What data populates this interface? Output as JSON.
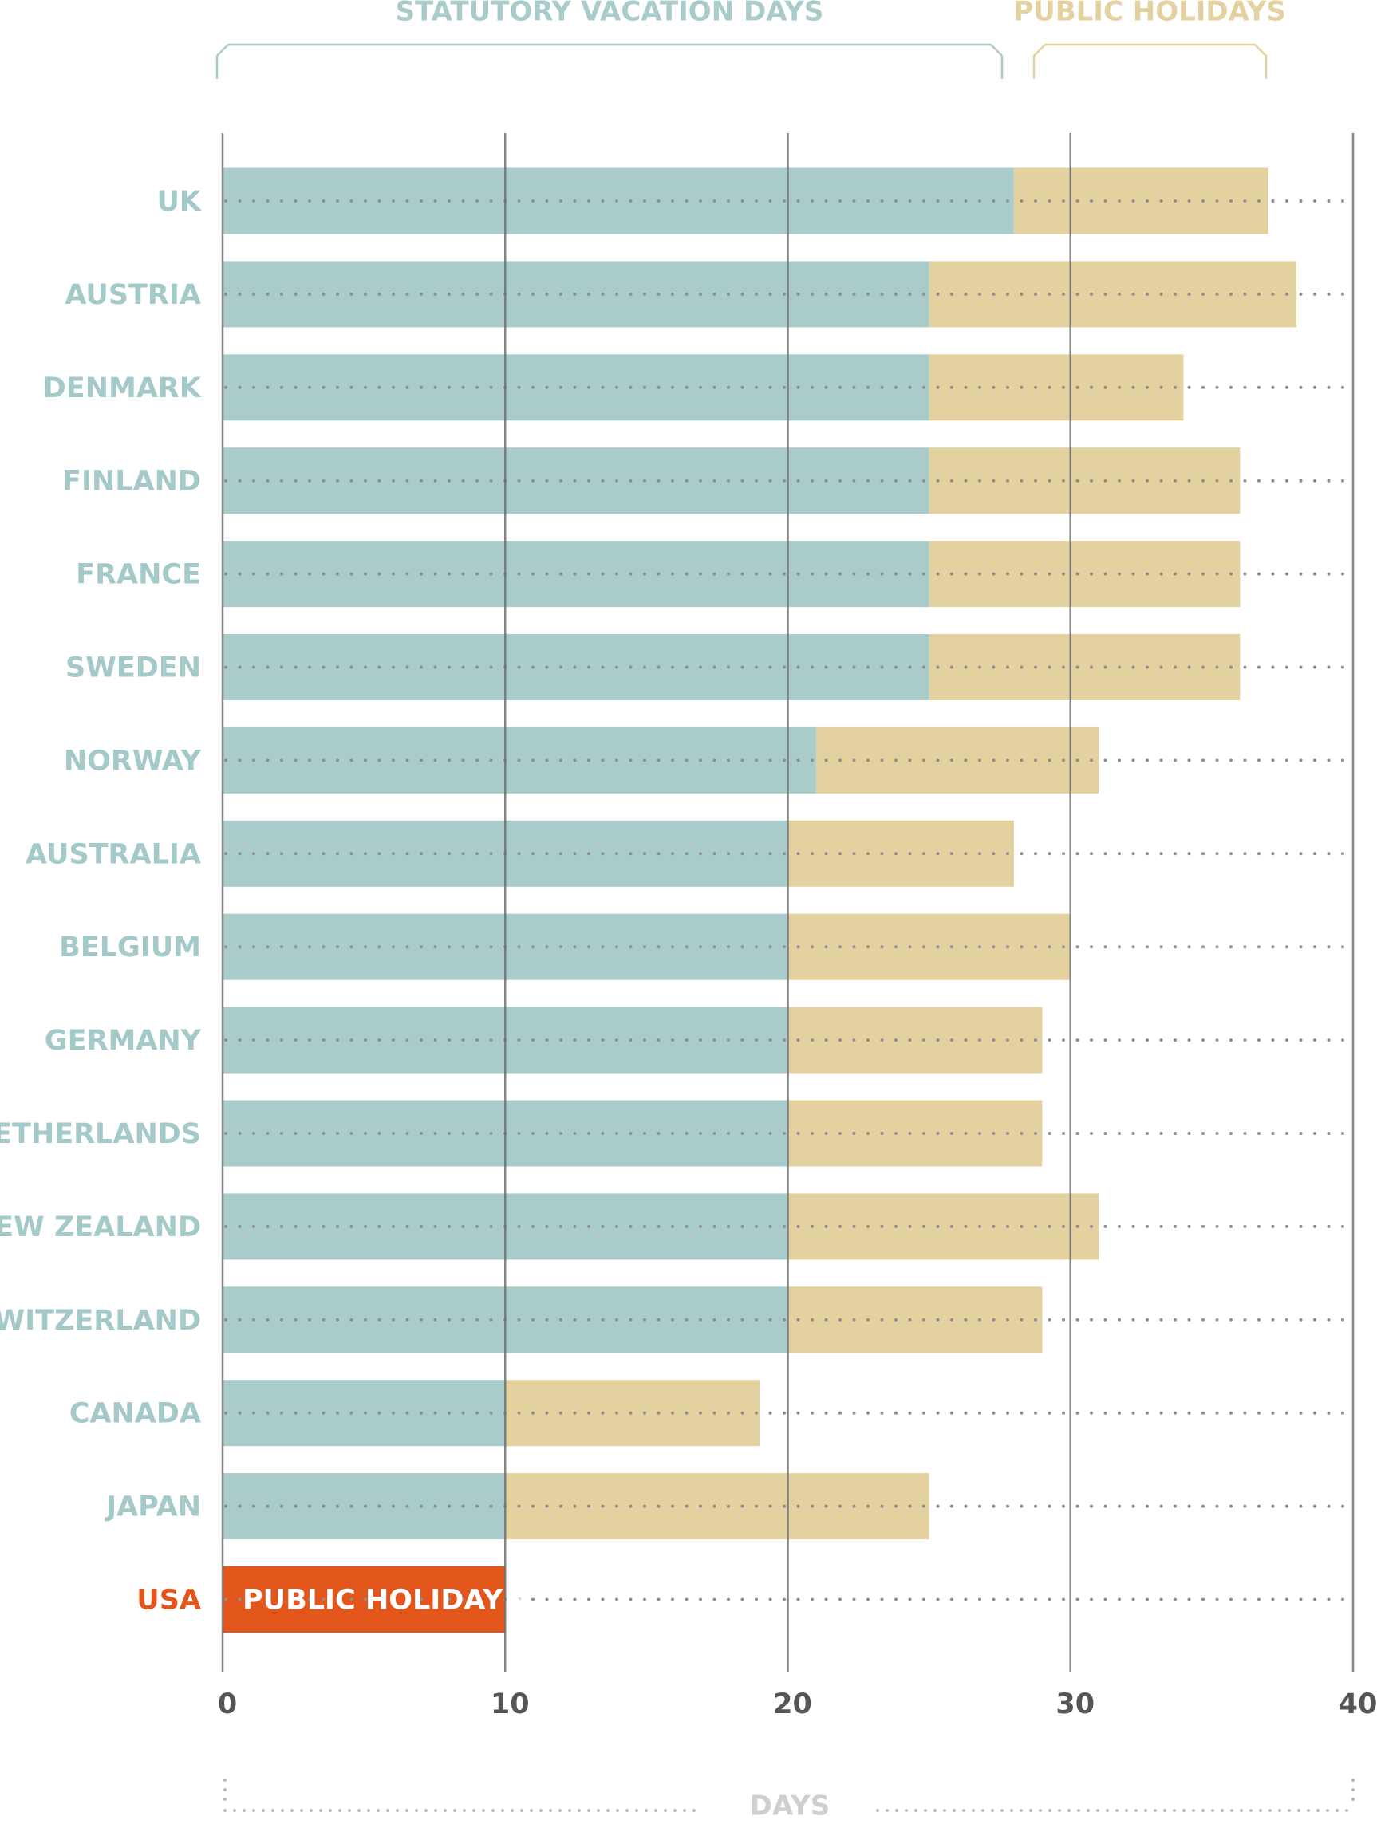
{
  "chart_data": {
    "type": "stacked-bar-horizontal",
    "categories": [
      "UK",
      "AUSTRIA",
      "DENMARK",
      "FINLAND",
      "FRANCE",
      "SWEDEN",
      "NORWAY",
      "AUSTRALIA",
      "BELGIUM",
      "GERMANY",
      "NETHERLANDS",
      "NEW ZEALAND",
      "SWITZERLAND",
      "CANADA",
      "JAPAN",
      "USA"
    ],
    "category_colors": [
      "#a3c9c8",
      "#a3c9c8",
      "#a3c9c8",
      "#a3c9c8",
      "#a3c9c8",
      "#a3c9c8",
      "#a3c9c8",
      "#a3c9c8",
      "#a3c9c8",
      "#a3c9c8",
      "#a3c9c8",
      "#a3c9c8",
      "#a3c9c8",
      "#a3c9c8",
      "#a3c9c8",
      "#e2561c"
    ],
    "series": [
      {
        "name": "STATUTORY VACATION DAYS",
        "color": "#a9cccb",
        "values": [
          28,
          25,
          25,
          25,
          25,
          25,
          21,
          20,
          20,
          20,
          20,
          20,
          20,
          10,
          10,
          0
        ]
      },
      {
        "name": "PUBLIC HOLIDAYS",
        "color": "#e4d1a0",
        "colors": [
          "#e4d1a0",
          "#e4d1a0",
          "#e4d1a0",
          "#e4d1a0",
          "#e4d1a0",
          "#e4d1a0",
          "#e4d1a0",
          "#e4d1a0",
          "#e4d1a0",
          "#e4d1a0",
          "#e4d1a0",
          "#e4d1a0",
          "#e4d1a0",
          "#e4d1a0",
          "#e4d1a0",
          "#e2561c"
        ],
        "values": [
          9,
          13,
          9,
          11,
          11,
          11,
          10,
          8,
          10,
          9,
          9,
          11,
          9,
          9,
          15,
          10
        ]
      }
    ],
    "annotation": "PUBLIC HOLIDAYS",
    "x_label": "DAYS",
    "xlim": [
      0,
      40
    ],
    "xticks": [
      0,
      10,
      20,
      30,
      40
    ],
    "grid": true
  }
}
